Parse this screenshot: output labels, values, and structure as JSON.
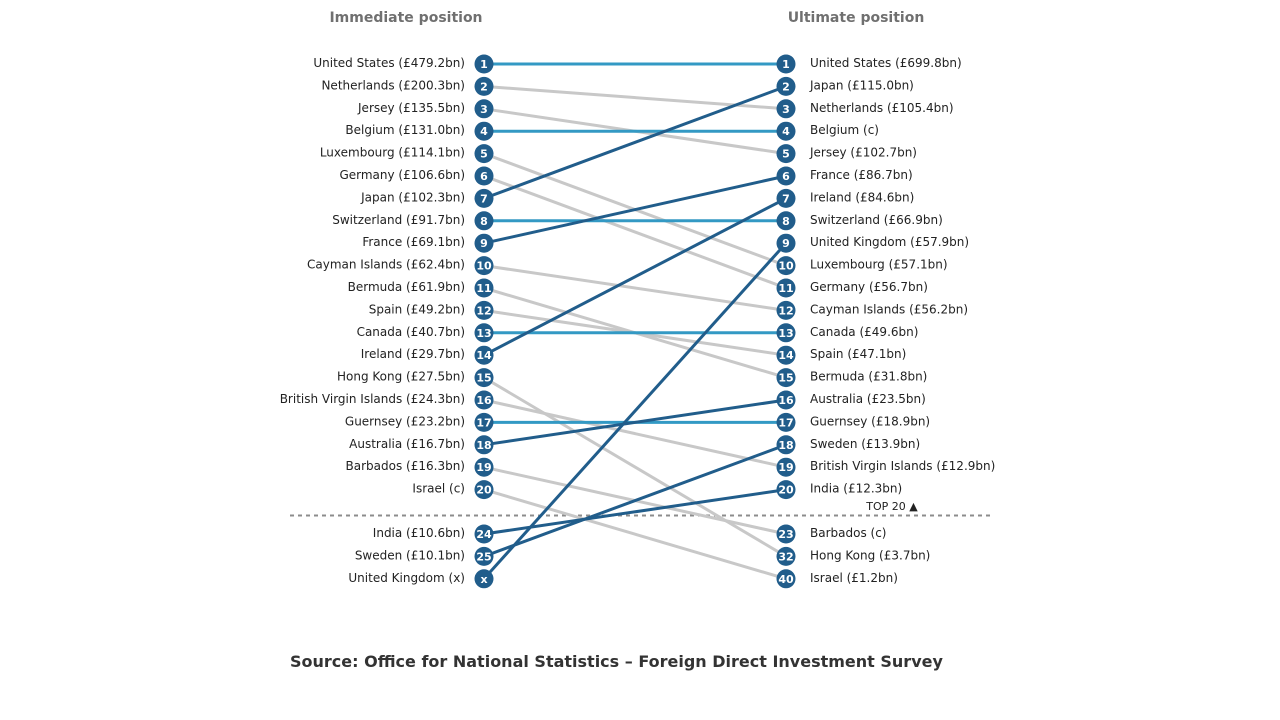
{
  "colors": {
    "circle": "#215d8b",
    "same_rank_line": "#3399c4",
    "riser_line": "#215d8b",
    "faller_line": "#c8c8c8",
    "divider": "#8c8c8c"
  },
  "source_text": "Source: Office for National Statistics – Foreign Direct Investment Survey",
  "chart_data": {
    "type": "slope",
    "title": "",
    "left_title": "Immediate position",
    "right_title": "Ultimate position",
    "divider_label": "TOP 20 ▲",
    "left": [
      {
        "rank": "1",
        "label": "United States (£479.2bn)",
        "country": "United States",
        "value": 479.2
      },
      {
        "rank": "2",
        "label": "Netherlands (£200.3bn)",
        "country": "Netherlands",
        "value": 200.3
      },
      {
        "rank": "3",
        "label": "Jersey (£135.5bn)",
        "country": "Jersey",
        "value": 135.5
      },
      {
        "rank": "4",
        "label": "Belgium (£131.0bn)",
        "country": "Belgium",
        "value": 131.0
      },
      {
        "rank": "5",
        "label": "Luxembourg (£114.1bn)",
        "country": "Luxembourg",
        "value": 114.1
      },
      {
        "rank": "6",
        "label": "Germany (£106.6bn)",
        "country": "Germany",
        "value": 106.6
      },
      {
        "rank": "7",
        "label": "Japan (£102.3bn)",
        "country": "Japan",
        "value": 102.3
      },
      {
        "rank": "8",
        "label": "Switzerland (£91.7bn)",
        "country": "Switzerland",
        "value": 91.7
      },
      {
        "rank": "9",
        "label": "France (£69.1bn)",
        "country": "France",
        "value": 69.1
      },
      {
        "rank": "10",
        "label": "Cayman Islands (£62.4bn)",
        "country": "Cayman Islands",
        "value": 62.4
      },
      {
        "rank": "11",
        "label": "Bermuda (£61.9bn)",
        "country": "Bermuda",
        "value": 61.9
      },
      {
        "rank": "12",
        "label": "Spain (£49.2bn)",
        "country": "Spain",
        "value": 49.2
      },
      {
        "rank": "13",
        "label": "Canada (£40.7bn)",
        "country": "Canada",
        "value": 40.7
      },
      {
        "rank": "14",
        "label": "Ireland (£29.7bn)",
        "country": "Ireland",
        "value": 29.7
      },
      {
        "rank": "15",
        "label": "Hong Kong (£27.5bn)",
        "country": "Hong Kong",
        "value": 27.5
      },
      {
        "rank": "16",
        "label": "British Virgin Islands (£24.3bn)",
        "country": "British Virgin Islands",
        "value": 24.3
      },
      {
        "rank": "17",
        "label": "Guernsey (£23.2bn)",
        "country": "Guernsey",
        "value": 23.2
      },
      {
        "rank": "18",
        "label": "Australia (£16.7bn)",
        "country": "Australia",
        "value": 16.7
      },
      {
        "rank": "19",
        "label": "Barbados (£16.3bn)",
        "country": "Barbados",
        "value": 16.3
      },
      {
        "rank": "20",
        "label": "Israel (c)",
        "country": "Israel",
        "value": null
      },
      {
        "rank": "24",
        "label": "India (£10.6bn)",
        "country": "India",
        "value": 10.6
      },
      {
        "rank": "25",
        "label": "Sweden (£10.1bn)",
        "country": "Sweden",
        "value": 10.1
      },
      {
        "rank": "x",
        "label": "United Kingdom (x)",
        "country": "United Kingdom",
        "value": null
      }
    ],
    "right": [
      {
        "rank": "1",
        "label": "United States (£699.8bn)",
        "country": "United States",
        "value": 699.8
      },
      {
        "rank": "2",
        "label": "Japan (£115.0bn)",
        "country": "Japan",
        "value": 115.0
      },
      {
        "rank": "3",
        "label": "Netherlands (£105.4bn)",
        "country": "Netherlands",
        "value": 105.4
      },
      {
        "rank": "4",
        "label": "Belgium (c)",
        "country": "Belgium",
        "value": null
      },
      {
        "rank": "5",
        "label": "Jersey (£102.7bn)",
        "country": "Jersey",
        "value": 102.7
      },
      {
        "rank": "6",
        "label": "France (£86.7bn)",
        "country": "France",
        "value": 86.7
      },
      {
        "rank": "7",
        "label": "Ireland (£84.6bn)",
        "country": "Ireland",
        "value": 84.6
      },
      {
        "rank": "8",
        "label": "Switzerland (£66.9bn)",
        "country": "Switzerland",
        "value": 66.9
      },
      {
        "rank": "9",
        "label": "United Kingdom (£57.9bn)",
        "country": "United Kingdom",
        "value": 57.9
      },
      {
        "rank": "10",
        "label": "Luxembourg (£57.1bn)",
        "country": "Luxembourg",
        "value": 57.1
      },
      {
        "rank": "11",
        "label": "Germany (£56.7bn)",
        "country": "Germany",
        "value": 56.7
      },
      {
        "rank": "12",
        "label": "Cayman Islands (£56.2bn)",
        "country": "Cayman Islands",
        "value": 56.2
      },
      {
        "rank": "13",
        "label": "Canada (£49.6bn)",
        "country": "Canada",
        "value": 49.6
      },
      {
        "rank": "14",
        "label": "Spain (£47.1bn)",
        "country": "Spain",
        "value": 47.1
      },
      {
        "rank": "15",
        "label": "Bermuda (£31.8bn)",
        "country": "Bermuda",
        "value": 31.8
      },
      {
        "rank": "16",
        "label": "Australia (£23.5bn)",
        "country": "Australia",
        "value": 23.5
      },
      {
        "rank": "17",
        "label": "Guernsey (£18.9bn)",
        "country": "Guernsey",
        "value": 18.9
      },
      {
        "rank": "18",
        "label": "Sweden (£13.9bn)",
        "country": "Sweden",
        "value": 13.9
      },
      {
        "rank": "19",
        "label": "British Virgin Islands (£12.9bn)",
        "country": "British Virgin Islands",
        "value": 12.9
      },
      {
        "rank": "20",
        "label": "India (£12.3bn)",
        "country": "India",
        "value": 12.3
      },
      {
        "rank": "23",
        "label": "Barbados (c)",
        "country": "Barbados",
        "value": null
      },
      {
        "rank": "32",
        "label": "Hong Kong (£3.7bn)",
        "country": "Hong Kong",
        "value": 3.7
      },
      {
        "rank": "40",
        "label": "Israel (£1.2bn)",
        "country": "Israel",
        "value": 1.2
      }
    ]
  }
}
